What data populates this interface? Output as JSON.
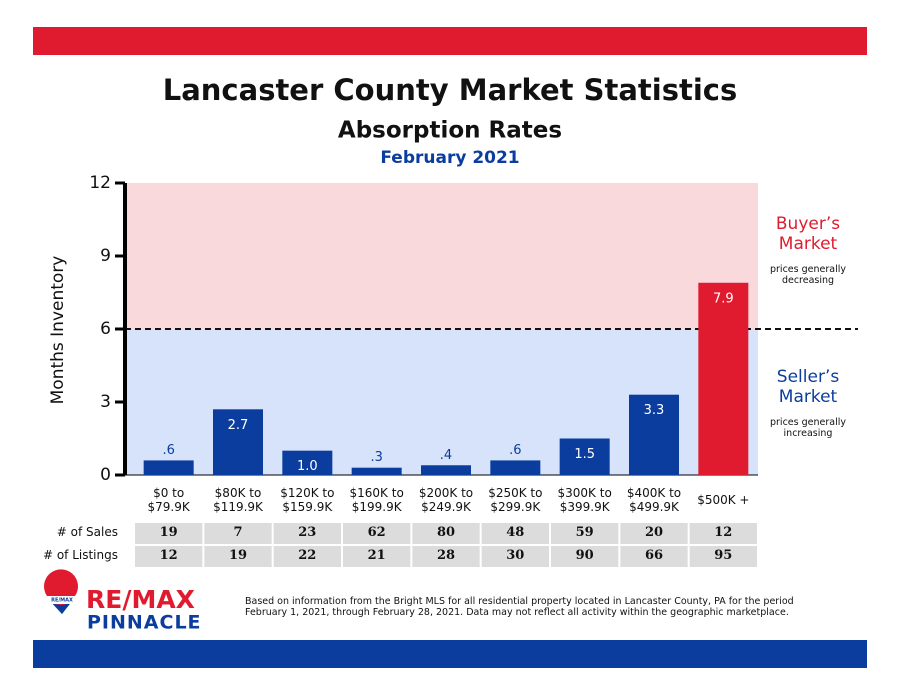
{
  "chart_data": {
    "type": "bar",
    "title": "Lancaster County Market Statistics",
    "subtitle": "Absorption Rates",
    "date": "February 2021",
    "ylabel": "Months Inventory",
    "categories": [
      "$0 to\n$79.9K",
      "$80K to\n$119.9K",
      "$120K to\n$159.9K",
      "$160K to\n$199.9K",
      "$200K to\n$249.9K",
      "$250K to\n$299.9K",
      "$300K to\n$399.9K",
      "$400K to\n$499.9K",
      "$500K +"
    ],
    "values": [
      0.6,
      2.7,
      1.0,
      0.3,
      0.4,
      0.6,
      1.5,
      3.3,
      7.9
    ],
    "value_labels": [
      ".6",
      "2.7",
      "1.0",
      ".3",
      ".4",
      ".6",
      "1.5",
      "3.3",
      "7.9"
    ],
    "colors": [
      "#0b3d9e",
      "#0b3d9e",
      "#0b3d9e",
      "#0b3d9e",
      "#0b3d9e",
      "#0b3d9e",
      "#0b3d9e",
      "#0b3d9e",
      "#e01b2f"
    ],
    "ylim": [
      0,
      12
    ],
    "yticks": [
      0,
      3,
      6,
      9,
      12
    ],
    "threshold": 6,
    "zones": {
      "above": {
        "title": "Buyer’s\nMarket",
        "note": "prices generally\ndecreasing",
        "color": "#e01b2f",
        "fill": "#f9d9dc"
      },
      "below": {
        "title": "Seller’s\nMarket",
        "note": "prices generally\nincreasing",
        "color": "#0b3d9e",
        "fill": "#d6e3fa"
      }
    },
    "table": {
      "rows": [
        {
          "label": "# of Sales",
          "values": [
            19,
            7,
            23,
            62,
            80,
            48,
            59,
            20,
            12
          ]
        },
        {
          "label": "# of Listings",
          "values": [
            12,
            19,
            22,
            21,
            28,
            30,
            90,
            66,
            95
          ]
        }
      ]
    }
  },
  "logo": {
    "badge": "RE/MAX",
    "brand": "RE/MAX",
    "office": "PINNACLE"
  },
  "footnote": "Based on information from the Bright MLS for all residential property located in Lancaster County, PA for the period\nFebruary 1, 2021, through February 28, 2021.  Data may not reflect all activity within the geographic marketplace."
}
